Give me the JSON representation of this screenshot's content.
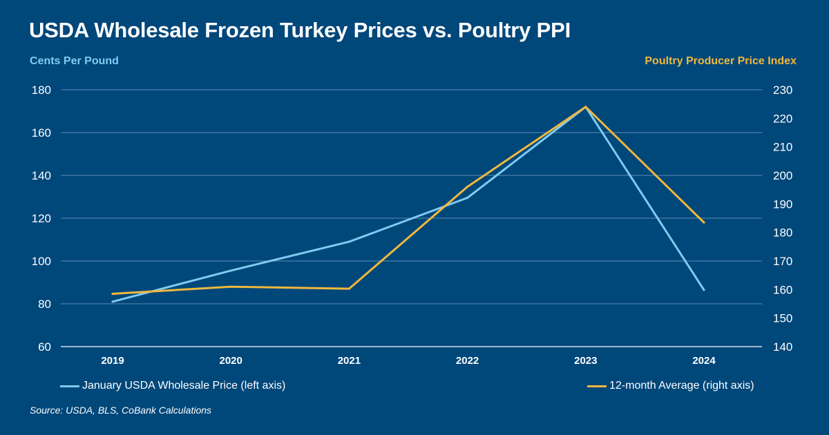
{
  "colors": {
    "background": "#00477a",
    "wholesale": "#7fcbf0",
    "ppi": "#f0b83c",
    "grid": "#5f8db3"
  },
  "title": "USDA Wholesale Frozen Turkey Prices vs. Poultry PPI",
  "source": "Source: USDA, BLS, CoBank Calculations",
  "chart_data": {
    "type": "line",
    "title": "USDA Wholesale Frozen Turkey Prices vs. Poultry PPI",
    "xlabel": "",
    "ylabel_left": "Cents Per Pound",
    "ylabel_right": "Poultry Producer Price Index",
    "x": [
      "2019",
      "2020",
      "2021",
      "2022",
      "2023",
      "2024"
    ],
    "ylim_left": [
      60,
      180
    ],
    "yticks_left": [
      "60",
      "80",
      "100",
      "120",
      "140",
      "160",
      "180"
    ],
    "ylim_right": [
      140,
      230
    ],
    "yticks_right": [
      "140",
      "150",
      "160",
      "170",
      "180",
      "190",
      "200",
      "210",
      "220",
      "230"
    ],
    "grid": true,
    "legend_position": "bottom",
    "series": [
      {
        "name": "January USDA Wholesale Price (left axis)",
        "axis": "left",
        "color": "#7fcbf0",
        "values": [
          81,
          95.5,
          109,
          129.5,
          172,
          86.5
        ]
      },
      {
        "name": "12-month Average (right axis)",
        "axis": "right",
        "color": "#f0b83c",
        "values": [
          158.5,
          161,
          160.3,
          196,
          224,
          183.5
        ]
      }
    ]
  }
}
